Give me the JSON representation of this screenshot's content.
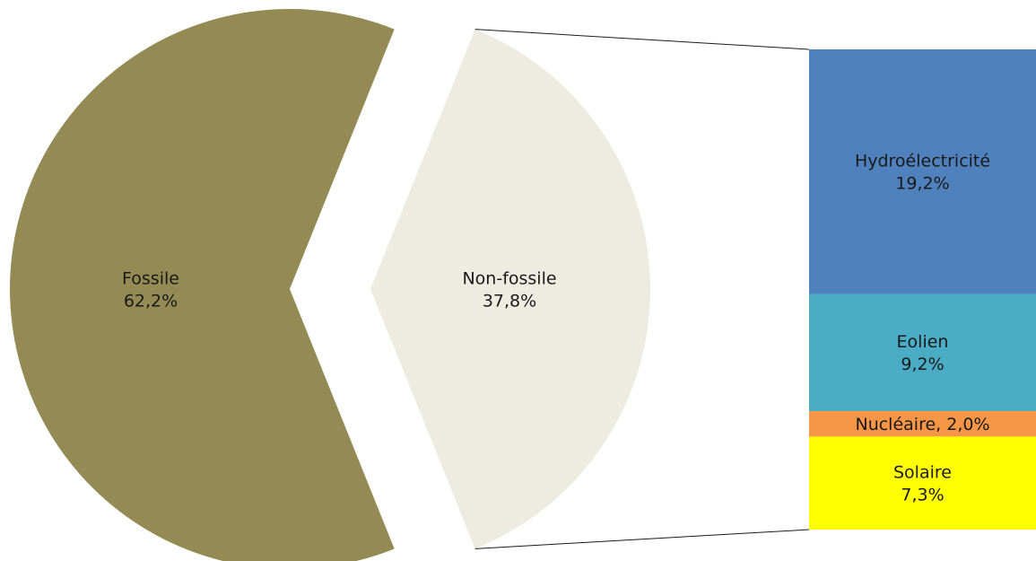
{
  "chart_data": [
    {
      "type": "pie",
      "categories": [
        "Fossile",
        "Non-fossile"
      ],
      "values": [
        62.2,
        37.8
      ],
      "labels": [
        {
          "name": "Fossile",
          "value": "62,2%"
        },
        {
          "name": "Non-fossile",
          "value": "37,8%"
        }
      ],
      "colors": [
        "#948a54",
        "#eeece1"
      ],
      "exploded": true,
      "title": ""
    },
    {
      "type": "bar",
      "stacked": true,
      "categories": [
        "Hydroélectricité",
        "Eolien",
        "Nucléaire",
        "Solaire"
      ],
      "values": [
        19.2,
        9.2,
        2.0,
        7.3
      ],
      "labels": [
        {
          "name": "Hydroélectricité",
          "value": "19,2%"
        },
        {
          "name": "Eolien",
          "value": "9,2%"
        },
        {
          "name": "Nucléaire, 2,0%",
          "value": ""
        },
        {
          "name": "Solaire",
          "value": "7,3%"
        }
      ],
      "colors": [
        "#4f81bd",
        "#4bacc6",
        "#f79646",
        "#ffff00"
      ],
      "breakdown_of": "Non-fossile",
      "title": ""
    }
  ]
}
